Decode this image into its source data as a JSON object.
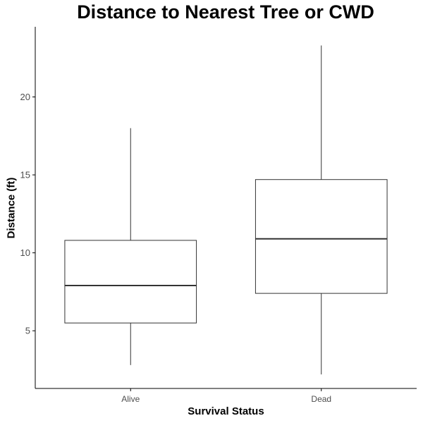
{
  "chart_data": {
    "type": "boxplot",
    "title": "Distance to Nearest Tree or CWD",
    "xlabel": "Survival Status",
    "ylabel": "Distance (ft)",
    "categories": [
      "Alive",
      "Dead"
    ],
    "boxes": [
      {
        "category": "Alive",
        "whisker_low": 2.8,
        "q1": 5.5,
        "median": 7.9,
        "q3": 10.8,
        "whisker_high": 18.0
      },
      {
        "category": "Dead",
        "whisker_low": 2.2,
        "q1": 7.4,
        "median": 10.9,
        "q3": 14.7,
        "whisker_high": 23.3
      }
    ],
    "yticks": [
      5,
      10,
      15,
      20
    ],
    "ylim": [
      1.3,
      24.5
    ],
    "grid": false,
    "legend": "none",
    "colors": {
      "box_fill": "#ffffff",
      "box_stroke": "#333333",
      "axis": "#000000",
      "tick_label": "#4d4d4d"
    }
  }
}
